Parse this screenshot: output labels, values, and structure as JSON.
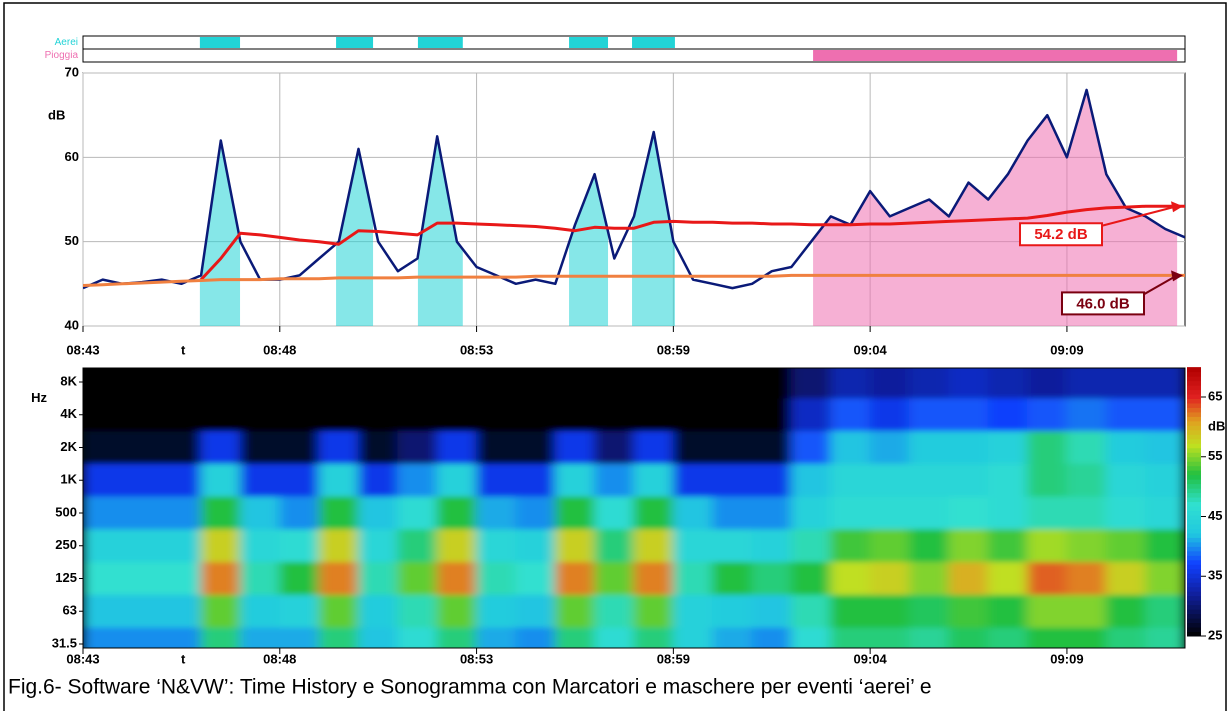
{
  "chart_data": [
    {
      "type": "line",
      "y_label": "dB",
      "x_label": "t",
      "xlim": [
        0,
        28
      ],
      "xticks": [
        {
          "value": 0,
          "label": "08:43"
        },
        {
          "value": 5,
          "label": "08:48"
        },
        {
          "value": 10,
          "label": "08:53"
        },
        {
          "value": 15,
          "label": "08:59"
        },
        {
          "value": 20,
          "label": "09:04"
        },
        {
          "value": 25,
          "label": "09:09"
        }
      ],
      "ylim": [
        40,
        70
      ],
      "yticks": [
        40,
        50,
        60,
        70
      ],
      "grid": true,
      "x": [
        0,
        0.5,
        1,
        1.5,
        2,
        2.5,
        3,
        3.5,
        4,
        4.5,
        5,
        5.5,
        6,
        6.5,
        7,
        7.5,
        8,
        8.5,
        9,
        9.5,
        10,
        10.5,
        11,
        11.5,
        12,
        12.5,
        13,
        13.5,
        14,
        14.5,
        15,
        15.5,
        16,
        16.5,
        17,
        17.5,
        18,
        18.5,
        19,
        19.5,
        20,
        20.5,
        21,
        21.5,
        22,
        22.5,
        23,
        23.5,
        24,
        24.5,
        25,
        25.5,
        26,
        26.5,
        27,
        27.5,
        28
      ],
      "series": [
        {
          "color": "#0a1a78",
          "fill": true,
          "values": [
            44.5,
            45.5,
            45,
            45.2,
            45.5,
            45,
            46,
            62,
            50,
            45.5,
            45.5,
            46,
            48,
            50,
            61,
            50,
            46.5,
            48,
            62.5,
            50,
            47,
            46,
            45,
            45.5,
            45,
            52,
            58,
            48,
            53,
            63,
            50,
            45.5,
            45,
            44.5,
            45,
            46.5,
            47,
            50,
            53,
            52,
            56,
            53,
            54,
            55,
            53,
            57,
            55,
            58,
            62,
            65,
            60,
            68,
            58,
            54,
            53,
            51.5,
            50.5
          ]
        },
        {
          "color": "#e81818",
          "values": [
            null,
            null,
            null,
            null,
            null,
            null,
            45.5,
            48,
            51,
            50.8,
            50.5,
            50.2,
            50,
            49.7,
            51.3,
            51.2,
            51,
            50.8,
            52.2,
            52.2,
            52.1,
            52,
            51.9,
            51.8,
            51.6,
            51.3,
            51.7,
            51.6,
            51.6,
            52.3,
            52.4,
            52.3,
            52.3,
            52.2,
            52.2,
            52.1,
            52.1,
            52,
            52,
            52,
            52.1,
            52.1,
            52.2,
            52.3,
            52.4,
            52.5,
            52.6,
            52.7,
            52.8,
            53.1,
            53.5,
            53.8,
            54,
            54.1,
            54.2,
            54.2,
            54.2
          ]
        },
        {
          "color": "#f08040",
          "values": [
            44.8,
            44.9,
            45,
            45.1,
            45.2,
            45.3,
            45.4,
            45.5,
            45.5,
            45.5,
            45.6,
            45.6,
            45.6,
            45.7,
            45.7,
            45.7,
            45.7,
            45.8,
            45.8,
            45.8,
            45.8,
            45.8,
            45.8,
            45.9,
            45.9,
            45.9,
            45.9,
            45.9,
            45.9,
            45.9,
            45.9,
            45.9,
            45.9,
            45.9,
            45.9,
            45.9,
            46,
            46,
            46,
            46,
            46,
            46,
            46,
            46,
            46,
            46,
            46,
            46,
            46,
            46,
            46,
            46,
            46,
            46,
            46,
            46,
            46
          ]
        }
      ],
      "events": [
        {
          "label": "Aerei",
          "color": "#22d3d6",
          "intervals": [
            [
              2.97,
              3.99
            ],
            [
              6.43,
              7.37
            ],
            [
              8.51,
              9.65
            ],
            [
              12.35,
              13.34
            ],
            [
              13.95,
              15.04
            ]
          ]
        },
        {
          "label": "Pioggia",
          "color": "#ee6fb0",
          "intervals": [
            [
              18.55,
              27.8
            ]
          ]
        }
      ],
      "annotations": [
        {
          "label": "54.2 dB",
          "value": 54.2,
          "color": "#e81818"
        },
        {
          "label": "46.0 dB",
          "value": 46.0,
          "color": "#7a0010"
        }
      ]
    },
    {
      "type": "heatmap",
      "x_label": "t",
      "y_label": "Hz",
      "xlim": [
        0,
        28
      ],
      "xticks": [
        {
          "value": 0,
          "label": "08:43"
        },
        {
          "value": 5,
          "label": "08:48"
        },
        {
          "value": 10,
          "label": "08:53"
        },
        {
          "value": 15,
          "label": "08:59"
        },
        {
          "value": 20,
          "label": "09:04"
        },
        {
          "value": 25,
          "label": "09:09"
        }
      ],
      "bins": [
        0,
        1,
        2,
        3,
        4,
        5,
        6,
        7,
        8,
        9,
        10,
        11,
        12,
        13,
        14,
        15,
        16,
        17,
        18,
        19,
        20,
        21,
        22,
        23,
        24,
        25,
        26,
        27,
        28
      ],
      "categories": [
        "8K",
        "4K",
        "2K",
        "1K",
        "500",
        "250",
        "125",
        "63",
        "31.5"
      ],
      "z": [
        [
          25,
          25,
          25,
          25,
          25,
          25,
          25,
          25,
          25,
          25,
          25,
          25,
          25,
          25,
          25,
          25,
          25,
          25,
          30,
          33,
          32,
          33,
          34,
          33,
          32,
          33,
          33,
          33
        ],
        [
          25,
          25,
          25,
          25,
          25,
          25,
          25,
          25,
          25,
          25,
          25,
          25,
          25,
          25,
          25,
          25,
          25,
          25,
          34,
          38,
          36,
          38,
          38,
          37,
          38,
          39,
          38,
          38
        ],
        [
          27,
          27,
          27,
          36,
          27,
          27,
          36,
          27,
          30,
          36,
          27,
          27,
          36,
          30,
          36,
          27,
          27,
          27,
          38,
          42,
          41,
          43,
          43,
          44,
          50,
          48,
          43,
          42
        ],
        [
          36,
          36,
          36,
          44,
          36,
          36,
          44,
          36,
          40,
          44,
          36,
          36,
          44,
          40,
          44,
          36,
          36,
          36,
          42,
          45,
          45,
          45,
          45,
          46,
          50,
          49,
          45,
          44
        ],
        [
          40,
          40,
          40,
          52,
          42,
          40,
          52,
          42,
          46,
          52,
          41,
          40,
          52,
          46,
          52,
          42,
          40,
          40,
          44,
          46,
          46,
          46,
          47,
          46,
          48,
          48,
          46,
          45
        ],
        [
          44,
          44,
          44,
          58,
          45,
          46,
          58,
          45,
          50,
          58,
          45,
          44,
          58,
          50,
          58,
          45,
          45,
          44,
          48,
          53,
          54,
          52,
          55,
          53,
          56,
          55,
          54,
          52
        ],
        [
          47,
          47,
          47,
          62,
          48,
          52,
          62,
          48,
          54,
          62,
          48,
          47,
          62,
          54,
          62,
          48,
          52,
          50,
          52,
          57,
          58,
          55,
          60,
          57,
          63,
          62,
          58,
          55
        ],
        [
          42,
          42,
          42,
          54,
          43,
          44,
          54,
          43,
          48,
          54,
          43,
          42,
          54,
          48,
          54,
          44,
          43,
          42,
          48,
          52,
          52,
          51,
          53,
          52,
          55,
          55,
          52,
          50
        ],
        [
          40,
          40,
          40,
          50,
          41,
          41,
          50,
          42,
          46,
          50,
          41,
          40,
          50,
          46,
          50,
          44,
          41,
          40,
          46,
          50,
          50,
          49,
          51,
          50,
          52,
          52,
          50,
          49
        ]
      ],
      "clim": [
        25,
        70
      ],
      "cticks": [
        25,
        35,
        45,
        55,
        65
      ],
      "c_label": "dB"
    }
  ],
  "caption": "Fig.6- Software ‘N&VW’: Time History e Sonogramma con Marcatori e maschere per eventi ‘aerei’ e"
}
